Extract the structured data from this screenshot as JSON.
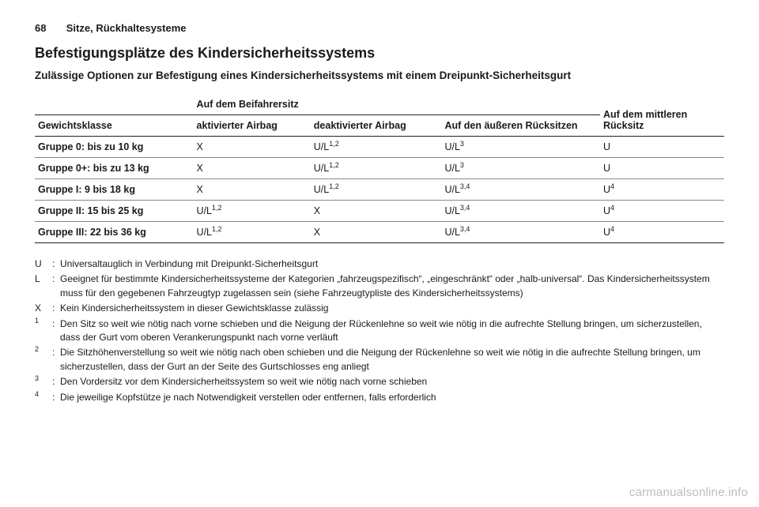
{
  "header": {
    "page": "68",
    "section": "Sitze, Rückhaltesysteme"
  },
  "title": "Befestigungsplätze des Kindersicherheitssystems",
  "subtitle": "Zulässige Optionen zur Befestigung eines Kindersicherheitssystems mit einem Dreipunkt-Sicherheitsgurt",
  "table": {
    "col_headers": {
      "weight": "Gewichtsklasse",
      "front_group": "Auf dem Beifahrersitz",
      "front_active": "aktivierter Airbag",
      "front_deact": "deaktivierter Airbag",
      "rear_outer": "Auf den äußeren Rücksitzen",
      "rear_center": "Auf dem mittleren Rücksitz"
    },
    "rows": [
      {
        "w": "Gruppe 0: bis zu 10 kg",
        "a": "X",
        "b": "U/L",
        "bs": "1,2",
        "c": "U/L",
        "cs": "3",
        "d": "U",
        "ds": ""
      },
      {
        "w": "Gruppe 0+: bis zu 13 kg",
        "a": "X",
        "b": "U/L",
        "bs": "1,2",
        "c": "U/L",
        "cs": "3",
        "d": "U",
        "ds": ""
      },
      {
        "w": "Gruppe I: 9 bis 18 kg",
        "a": "X",
        "b": "U/L",
        "bs": "1,2",
        "c": "U/L",
        "cs": "3,4",
        "d": "U",
        "ds": "4"
      },
      {
        "w": "Gruppe II: 15 bis 25 kg",
        "a": "U/L",
        "as": "1,2",
        "b": "X",
        "bs": "",
        "c": "U/L",
        "cs": "3,4",
        "d": "U",
        "ds": "4"
      },
      {
        "w": "Gruppe III: 22 bis 36 kg",
        "a": "U/L",
        "as": "1,2",
        "b": "X",
        "bs": "",
        "c": "U/L",
        "cs": "3,4",
        "d": "U",
        "ds": "4"
      }
    ]
  },
  "legend": [
    {
      "k": "U",
      "t": "Universaltauglich in Verbindung mit Dreipunkt-Sicherheitsgurt"
    },
    {
      "k": "L",
      "t": "Geeignet für bestimmte Kindersicherheitssysteme der Kategorien „fahrzeugspezifisch“, „eingeschränkt“ oder „halb-universal“. Das Kindersicherheitssystem muss für den gegebenen Fahrzeugtyp zugelassen sein (siehe Fahrzeug­typliste des Kindersicherheitssystems)"
    },
    {
      "k": "X",
      "t": "Kein Kindersicherheitssystem in dieser Gewichtsklasse zulässig"
    },
    {
      "k": "1",
      "t": "Den Sitz so weit wie nötig nach vorne schieben und die Neigung der Rückenlehne so weit wie nötig in die aufrechte Stellung bringen, um sicherzustellen, dass der Gurt vom oberen Verankerungspunkt nach vorne verläuft"
    },
    {
      "k": "2",
      "t": "Die Sitzhöhenverstellung so weit wie nötig nach oben schieben und die Neigung der Rückenlehne so weit wie nötig in die aufrechte Stellung bringen, um sicherzustellen, dass der Gurt an der Seite des Gurtschlosses eng anliegt"
    },
    {
      "k": "3",
      "t": "Den Vordersitz vor dem Kindersicherheitssystem so weit wie nötig nach vorne schieben"
    },
    {
      "k": "4",
      "t": "Die jeweilige Kopfstütze je nach Notwendigkeit verstellen oder entfernen, falls erforderlich"
    }
  ],
  "watermark": "carmanualsonline.info"
}
